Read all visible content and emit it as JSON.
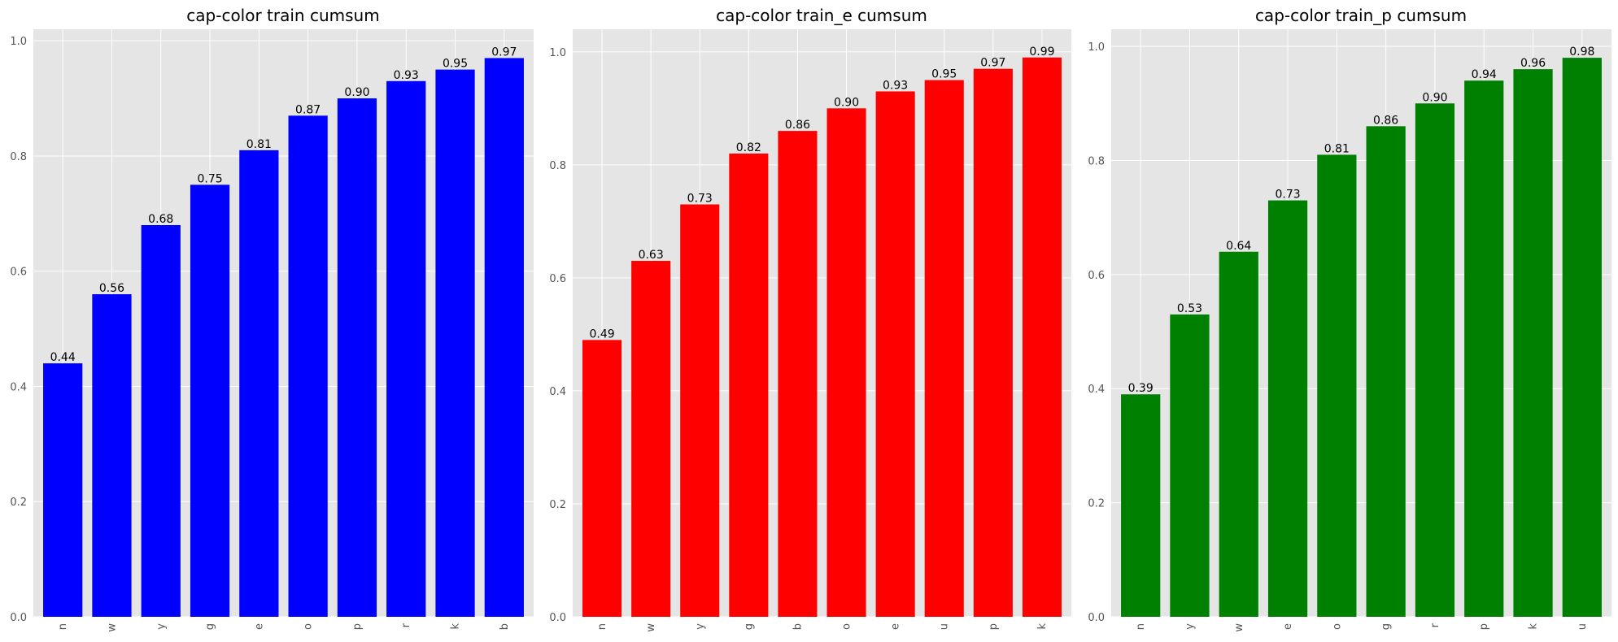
{
  "chart_data": [
    {
      "type": "bar",
      "title": "cap-color train cumsum",
      "categories": [
        "n",
        "w",
        "y",
        "g",
        "e",
        "o",
        "p",
        "r",
        "k",
        "b"
      ],
      "values": [
        0.44,
        0.56,
        0.68,
        0.75,
        0.81,
        0.87,
        0.9,
        0.93,
        0.95,
        0.97
      ],
      "data_labels": [
        "0.44",
        "0.56",
        "0.68",
        "0.75",
        "0.81",
        "0.87",
        "0.90",
        "0.93",
        "0.95",
        "0.97"
      ],
      "yticks": [
        "0.0",
        "0.2",
        "0.4",
        "0.6",
        "0.8",
        "1.0"
      ],
      "ylim": [
        0,
        1.02
      ],
      "color": "#0000ff",
      "grid": true,
      "xlabel": "",
      "ylabel": ""
    },
    {
      "type": "bar",
      "title": "cap-color train_e cumsum",
      "categories": [
        "n",
        "w",
        "y",
        "g",
        "b",
        "o",
        "e",
        "u",
        "p",
        "k"
      ],
      "values": [
        0.49,
        0.63,
        0.73,
        0.82,
        0.86,
        0.9,
        0.93,
        0.95,
        0.97,
        0.99
      ],
      "data_labels": [
        "0.49",
        "0.63",
        "0.73",
        "0.82",
        "0.86",
        "0.90",
        "0.93",
        "0.95",
        "0.97",
        "0.99"
      ],
      "yticks": [
        "0.0",
        "0.2",
        "0.4",
        "0.6",
        "0.8",
        "1.0"
      ],
      "ylim": [
        0,
        1.04
      ],
      "color": "#ff0000",
      "grid": true,
      "xlabel": "",
      "ylabel": ""
    },
    {
      "type": "bar",
      "title": "cap-color train_p cumsum",
      "categories": [
        "n",
        "y",
        "w",
        "e",
        "o",
        "g",
        "r",
        "p",
        "k",
        "u"
      ],
      "values": [
        0.39,
        0.53,
        0.64,
        0.73,
        0.81,
        0.86,
        0.9,
        0.94,
        0.96,
        0.98
      ],
      "data_labels": [
        "0.39",
        "0.53",
        "0.64",
        "0.73",
        "0.81",
        "0.86",
        "0.90",
        "0.94",
        "0.96",
        "0.98"
      ],
      "yticks": [
        "0.0",
        "0.2",
        "0.4",
        "0.6",
        "0.8",
        "1.0"
      ],
      "ylim": [
        0,
        1.03
      ],
      "color": "#008000",
      "grid": true,
      "xlabel": "",
      "ylabel": ""
    }
  ]
}
